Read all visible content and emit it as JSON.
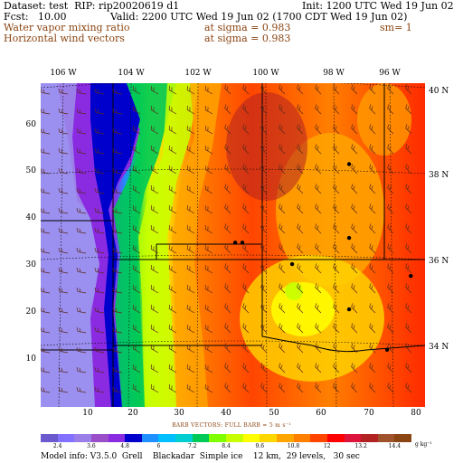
{
  "header": {
    "dataset_line": "Dataset: test  RIP: rip20020619 d1",
    "init_line": "Init: 1200 UTC Wed 19 Jun 02",
    "fcst_line": "Fcst:   10.00",
    "valid_line": "Valid: 2200 UTC Wed 19 Jun 02 (1700 CDT Wed 19 Jun 02)",
    "field1": "Water vapor mixing ratio",
    "field1_level": "at sigma = 0.983",
    "field1_sm": "sm= 1",
    "field2": "Horizontal wind vectors",
    "field2_level": "at sigma = 0.983"
  },
  "map": {
    "top_ticks": [
      "106 W",
      "104 W",
      "102 W",
      "100 W",
      "98 W",
      "96 W"
    ],
    "right_ticks": [
      "40 N",
      "38 N",
      "36 N",
      "34 N"
    ],
    "left_ticks": [
      "60",
      "50",
      "40",
      "30",
      "20",
      "10"
    ],
    "bottom_ticks": [
      "10",
      "20",
      "30",
      "40",
      "50",
      "60",
      "70",
      "80"
    ],
    "cities": [
      {
        "name": "city-dot",
        "x": 65,
        "y": 51
      },
      {
        "name": "city-dot",
        "x": 41,
        "y": 34.5
      },
      {
        "name": "city-dot",
        "x": 42.5,
        "y": 34.5
      },
      {
        "name": "city-dot",
        "x": 65,
        "y": 35.5
      },
      {
        "name": "city-dot",
        "x": 53,
        "y": 30
      },
      {
        "name": "city-dot",
        "x": 78,
        "y": 27.5
      },
      {
        "name": "city-dot",
        "x": 65,
        "y": 20.5
      },
      {
        "name": "city-dot",
        "x": 73,
        "y": 12
      }
    ]
  },
  "barb_label": "BARB VECTORS:  FULL BARB = 5 m s⁻¹",
  "legend": {
    "colors": [
      "#6a5acd",
      "#8470ff",
      "#9b7fe8",
      "#9a4fc8",
      "#8a2be2",
      "#0000cd",
      "#1e90ff",
      "#00bfff",
      "#00ced1",
      "#00c957",
      "#7fff00",
      "#c8ff00",
      "#ffff00",
      "#ffd700",
      "#ffa500",
      "#ff7f00",
      "#ff4500",
      "#ff0000",
      "#dc143c",
      "#b22222",
      "#a0522d",
      "#8b4513"
    ],
    "labels": [
      "2.4",
      "3.6",
      "4.8",
      "6",
      "7.2",
      "8.4",
      "9.6",
      "10.8",
      "12",
      "13.2",
      "14.4"
    ],
    "units": "g kg⁻¹"
  },
  "model_info": "Model info: V3.5.0  Grell    Blackadar  Simple ice    12 km,  29 levels,   30 sec"
}
